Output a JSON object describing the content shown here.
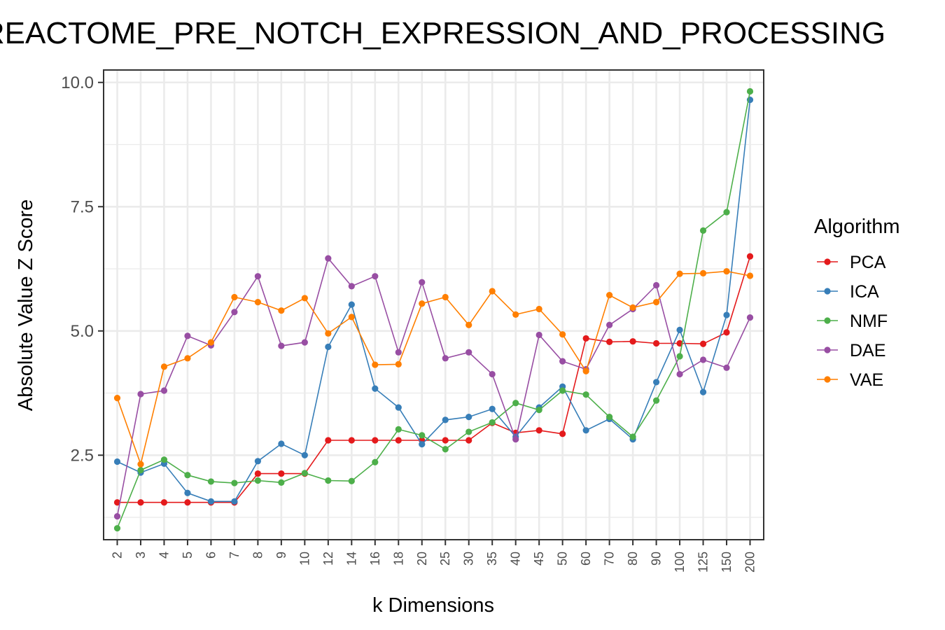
{
  "chart_data": {
    "type": "line",
    "title": "REACTOME_PRE_NOTCH_EXPRESSION_AND_PROCESSING",
    "xlabel": "k Dimensions",
    "ylabel": "Absolute Value Z Score",
    "categories": [
      "2",
      "3",
      "4",
      "5",
      "6",
      "7",
      "8",
      "9",
      "10",
      "12",
      "14",
      "16",
      "18",
      "20",
      "25",
      "30",
      "35",
      "40",
      "45",
      "50",
      "60",
      "70",
      "80",
      "90",
      "100",
      "125",
      "150",
      "200"
    ],
    "ylim": [
      0.8,
      10.25
    ],
    "yticks": [
      "2.5",
      "5.0",
      "7.5",
      "10.0"
    ],
    "grid": true,
    "legend": {
      "title": "Algorithm",
      "placement": "right"
    },
    "series": [
      {
        "name": "PCA",
        "color": "#e41a1c",
        "values": [
          1.55,
          1.55,
          1.55,
          1.55,
          1.55,
          1.55,
          2.13,
          2.13,
          2.13,
          2.8,
          2.8,
          2.8,
          2.8,
          2.8,
          2.8,
          2.8,
          3.15,
          2.95,
          3.0,
          2.93,
          4.85,
          4.78,
          4.79,
          4.75,
          4.75,
          4.74,
          4.97,
          6.5
        ]
      },
      {
        "name": "ICA",
        "color": "#377eb8",
        "values": [
          2.37,
          2.15,
          2.33,
          1.74,
          1.57,
          1.57,
          2.38,
          2.73,
          2.5,
          4.68,
          5.53,
          3.84,
          3.46,
          2.72,
          3.21,
          3.27,
          3.43,
          2.87,
          3.46,
          3.88,
          3.0,
          3.23,
          2.82,
          3.97,
          5.02,
          3.77,
          5.32,
          9.65
        ]
      },
      {
        "name": "NMF",
        "color": "#4daf4a",
        "values": [
          1.03,
          2.2,
          2.41,
          2.1,
          1.97,
          1.94,
          1.99,
          1.95,
          2.14,
          1.99,
          1.98,
          2.36,
          3.02,
          2.9,
          2.62,
          2.97,
          3.16,
          3.55,
          3.41,
          3.8,
          3.72,
          3.27,
          2.87,
          3.6,
          4.49,
          7.02,
          7.39,
          9.82
        ]
      },
      {
        "name": "DAE",
        "color": "#984ea3",
        "values": [
          1.27,
          3.73,
          3.8,
          4.9,
          4.71,
          5.38,
          6.1,
          4.7,
          4.77,
          6.46,
          5.9,
          6.1,
          4.57,
          5.98,
          4.45,
          4.57,
          4.13,
          2.82,
          4.92,
          4.39,
          4.23,
          5.12,
          5.44,
          5.92,
          4.13,
          4.42,
          4.26,
          5.27
        ]
      },
      {
        "name": "VAE",
        "color": "#ff7f00",
        "values": [
          3.65,
          2.32,
          4.28,
          4.45,
          4.77,
          5.68,
          5.58,
          5.41,
          5.66,
          4.95,
          5.28,
          4.32,
          4.33,
          5.55,
          5.68,
          5.12,
          5.8,
          5.33,
          5.44,
          4.93,
          4.19,
          5.72,
          5.47,
          5.58,
          6.15,
          6.16,
          6.2,
          6.11
        ]
      }
    ]
  }
}
